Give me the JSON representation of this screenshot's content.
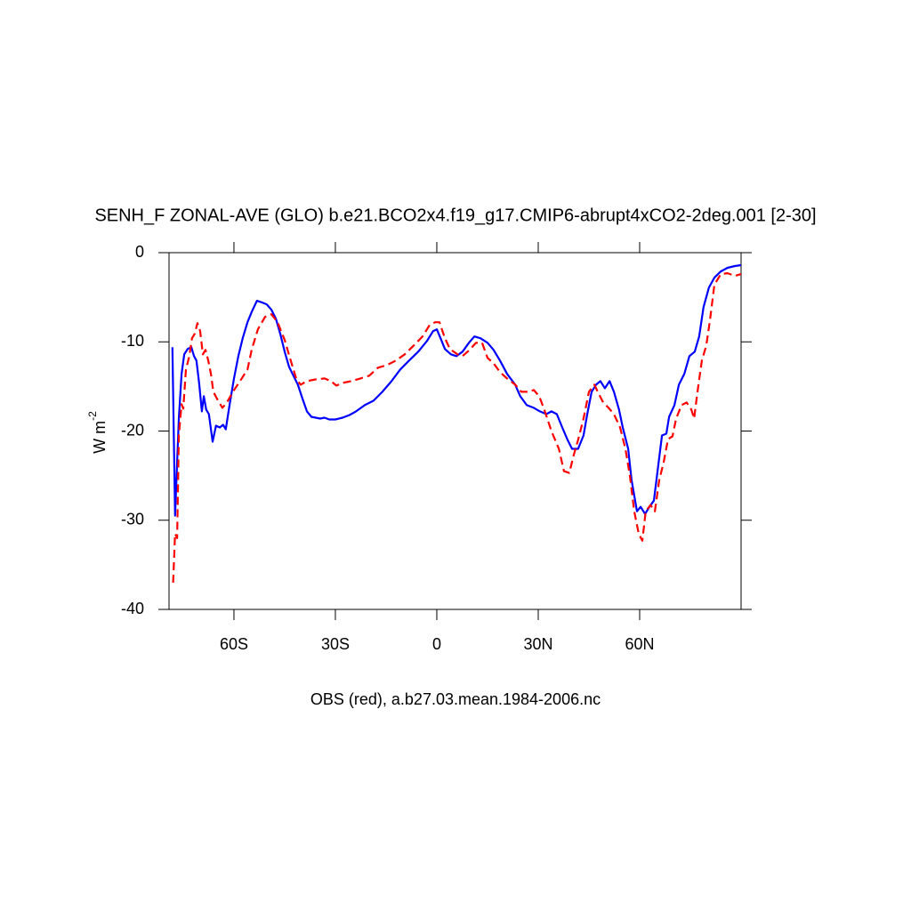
{
  "chart_data": {
    "type": "line",
    "title": "SENH_F ZONAL-AVE (GLO) b.e21.BCO2x4.f19_g17.CMIP6-abrupt4xCO2-2deg.001 [2-30]",
    "xlabel": "OBS (red), a.b27.03.mean.1984-2006.nc",
    "ylabel": "W m",
    "ylabel_sup": "-2",
    "xlim": [
      -79.2,
      90
    ],
    "ylim": [
      -40,
      0
    ],
    "xticks": [
      {
        "value": -60,
        "label": "60S"
      },
      {
        "value": -30,
        "label": "30S"
      },
      0,
      {
        "value": 30,
        "label": "30N"
      },
      {
        "value": 60,
        "label": "60N"
      }
    ],
    "yticks": [
      0,
      -10,
      -20,
      -30,
      -40
    ],
    "series": [
      {
        "color": "#0000ff",
        "dashed": false,
        "x": [
          -78.2,
          -77.4,
          -76.8,
          -76.3,
          -75.5,
          -74.7,
          -73.7,
          -72.6,
          -71.8,
          -71.1,
          -70.3,
          -69.5,
          -68.9,
          -68.2,
          -67.4,
          -66.3,
          -65.3,
          -64.2,
          -63.2,
          -62.4,
          -61.3,
          -60,
          -58.7,
          -57.4,
          -56,
          -54.7,
          -53.2,
          -51.6,
          -50.3,
          -48.9,
          -47.6,
          -46.3,
          -45,
          -43.7,
          -42.4,
          -41.1,
          -39.7,
          -38.4,
          -37.1,
          -35.8,
          -34.5,
          -33.2,
          -31.8,
          -30,
          -27.9,
          -25.8,
          -23.9,
          -21.3,
          -18.7,
          -16.1,
          -13.4,
          -10.8,
          -8.2,
          -5.5,
          -2.9,
          -1.1,
          0,
          1.1,
          2.4,
          4.2,
          5.8,
          7.6,
          9.5,
          11.1,
          12.9,
          15,
          16.8,
          18.7,
          20.8,
          23.2,
          24.7,
          26.6,
          28.7,
          30.5,
          32.4,
          33.9,
          35.5,
          37.1,
          38.7,
          40,
          41.8,
          43.4,
          44.5,
          45.8,
          47.1,
          48.4,
          49.7,
          51.1,
          52.4,
          53.9,
          55,
          56.6,
          57.6,
          59.2,
          60.3,
          61.6,
          62.9,
          64.2,
          65.3,
          66.6,
          67.9,
          68.7,
          70.3,
          71.6,
          73.2,
          74.7,
          76.3,
          77.6,
          78.9,
          80.5,
          82.1,
          84,
          86,
          88.2,
          90
        ],
        "values": [
          -10.6,
          -29.5,
          -23.5,
          -18.6,
          -13.6,
          -11.4,
          -10.8,
          -10.6,
          -11.6,
          -12.1,
          -14.6,
          -17.8,
          -16.1,
          -17.6,
          -18.1,
          -21.2,
          -19.4,
          -19.6,
          -19.3,
          -19.8,
          -17.1,
          -14.1,
          -11.6,
          -9.6,
          -7.8,
          -6.6,
          -5.4,
          -5.6,
          -5.8,
          -6.4,
          -7.4,
          -9.1,
          -11.1,
          -12.8,
          -13.8,
          -14.8,
          -16.4,
          -17.8,
          -18.4,
          -18.5,
          -18.6,
          -18.5,
          -18.7,
          -18.7,
          -18.5,
          -18.2,
          -17.8,
          -17.1,
          -16.6,
          -15.6,
          -14.4,
          -13.1,
          -12.1,
          -11.1,
          -9.9,
          -8.8,
          -8.6,
          -9.6,
          -10.8,
          -11.4,
          -11.6,
          -11.1,
          -10.1,
          -9.4,
          -9.6,
          -10.1,
          -10.9,
          -12.1,
          -13.6,
          -14.8,
          -16.1,
          -17.1,
          -17.4,
          -17.8,
          -18.1,
          -17.8,
          -18.1,
          -19.6,
          -21,
          -22,
          -22,
          -20.5,
          -18.1,
          -15.6,
          -14.8,
          -14.4,
          -15.2,
          -14.4,
          -15.6,
          -17.6,
          -19.6,
          -22,
          -25.5,
          -29,
          -28.5,
          -29.3,
          -28.5,
          -27.8,
          -24.5,
          -20.5,
          -20.3,
          -18.4,
          -17.1,
          -14.8,
          -13.6,
          -11.6,
          -11.1,
          -9.4,
          -6.1,
          -3.9,
          -2.8,
          -2.1,
          -1.7,
          -1.5,
          -1.4
        ]
      },
      {
        "color": "#ff0000",
        "dashed": true,
        "x": [
          -78,
          -77.4,
          -76.8,
          -76.3,
          -75.5,
          -75,
          -74.2,
          -73.2,
          -72.4,
          -71.6,
          -70.8,
          -70,
          -69.2,
          -68.4,
          -67.6,
          -66.8,
          -66.1,
          -64.7,
          -63.4,
          -62.1,
          -60.3,
          -58.2,
          -56,
          -54.7,
          -52.9,
          -50.8,
          -48.9,
          -47.1,
          -45,
          -43.2,
          -41.6,
          -40.3,
          -38.4,
          -35.8,
          -33.2,
          -31.3,
          -29.7,
          -27.9,
          -25.3,
          -22.6,
          -20,
          -17.4,
          -14.7,
          -12.1,
          -9.5,
          -6.8,
          -4.2,
          -2.1,
          -0.5,
          0.8,
          2.4,
          3.9,
          6.1,
          7.6,
          9.7,
          11.6,
          13.4,
          15,
          16.8,
          18.7,
          20.8,
          23.2,
          25,
          27.1,
          28.7,
          30.3,
          31.8,
          33.9,
          36.1,
          37.6,
          39.2,
          40.5,
          41.8,
          43.4,
          45,
          46.6,
          47.6,
          49.2,
          50.8,
          52.4,
          54.2,
          55.8,
          57.1,
          58.4,
          59.7,
          60.8,
          61.8,
          63.2,
          64.5,
          65.8,
          67.1,
          68.4,
          69.7,
          70.8,
          72.4,
          73.9,
          75.3,
          76.1,
          77.1,
          78.4,
          79.7,
          80.8,
          82.1,
          84,
          86,
          88.2,
          90
        ],
        "values": [
          -37,
          -31.5,
          -32,
          -20.5,
          -17,
          -17.5,
          -13.1,
          -11.6,
          -9.6,
          -9.1,
          -7.9,
          -8.8,
          -11.4,
          -10.9,
          -12.1,
          -13.6,
          -15.6,
          -16.6,
          -17.4,
          -16.8,
          -15.6,
          -14.4,
          -13.1,
          -10.8,
          -8.6,
          -7.2,
          -6.9,
          -7.8,
          -9.8,
          -12.1,
          -14.1,
          -14.8,
          -14.4,
          -14.2,
          -14.1,
          -14.4,
          -14.9,
          -14.6,
          -14.4,
          -14.1,
          -13.8,
          -12.9,
          -12.6,
          -12.1,
          -11.4,
          -10.4,
          -9.4,
          -8.1,
          -7.8,
          -7.8,
          -9.6,
          -10.8,
          -11.4,
          -11.6,
          -10.9,
          -10.1,
          -10.1,
          -11.8,
          -12.4,
          -13.4,
          -14.1,
          -14.8,
          -15.6,
          -15.6,
          -15.4,
          -16.1,
          -17.6,
          -20,
          -22,
          -24.5,
          -24.7,
          -22.7,
          -21,
          -18.6,
          -15.6,
          -14.8,
          -15.6,
          -16.8,
          -17.4,
          -18.1,
          -19.6,
          -22,
          -25,
          -29,
          -31.5,
          -32.3,
          -29,
          -28.3,
          -29,
          -25.5,
          -23.5,
          -20.9,
          -20.6,
          -18.6,
          -17.1,
          -16.8,
          -17.6,
          -18.6,
          -15.6,
          -12.1,
          -10.4,
          -7.6,
          -3.6,
          -2.4,
          -2.3,
          -2.6,
          -2.4
        ]
      }
    ]
  }
}
